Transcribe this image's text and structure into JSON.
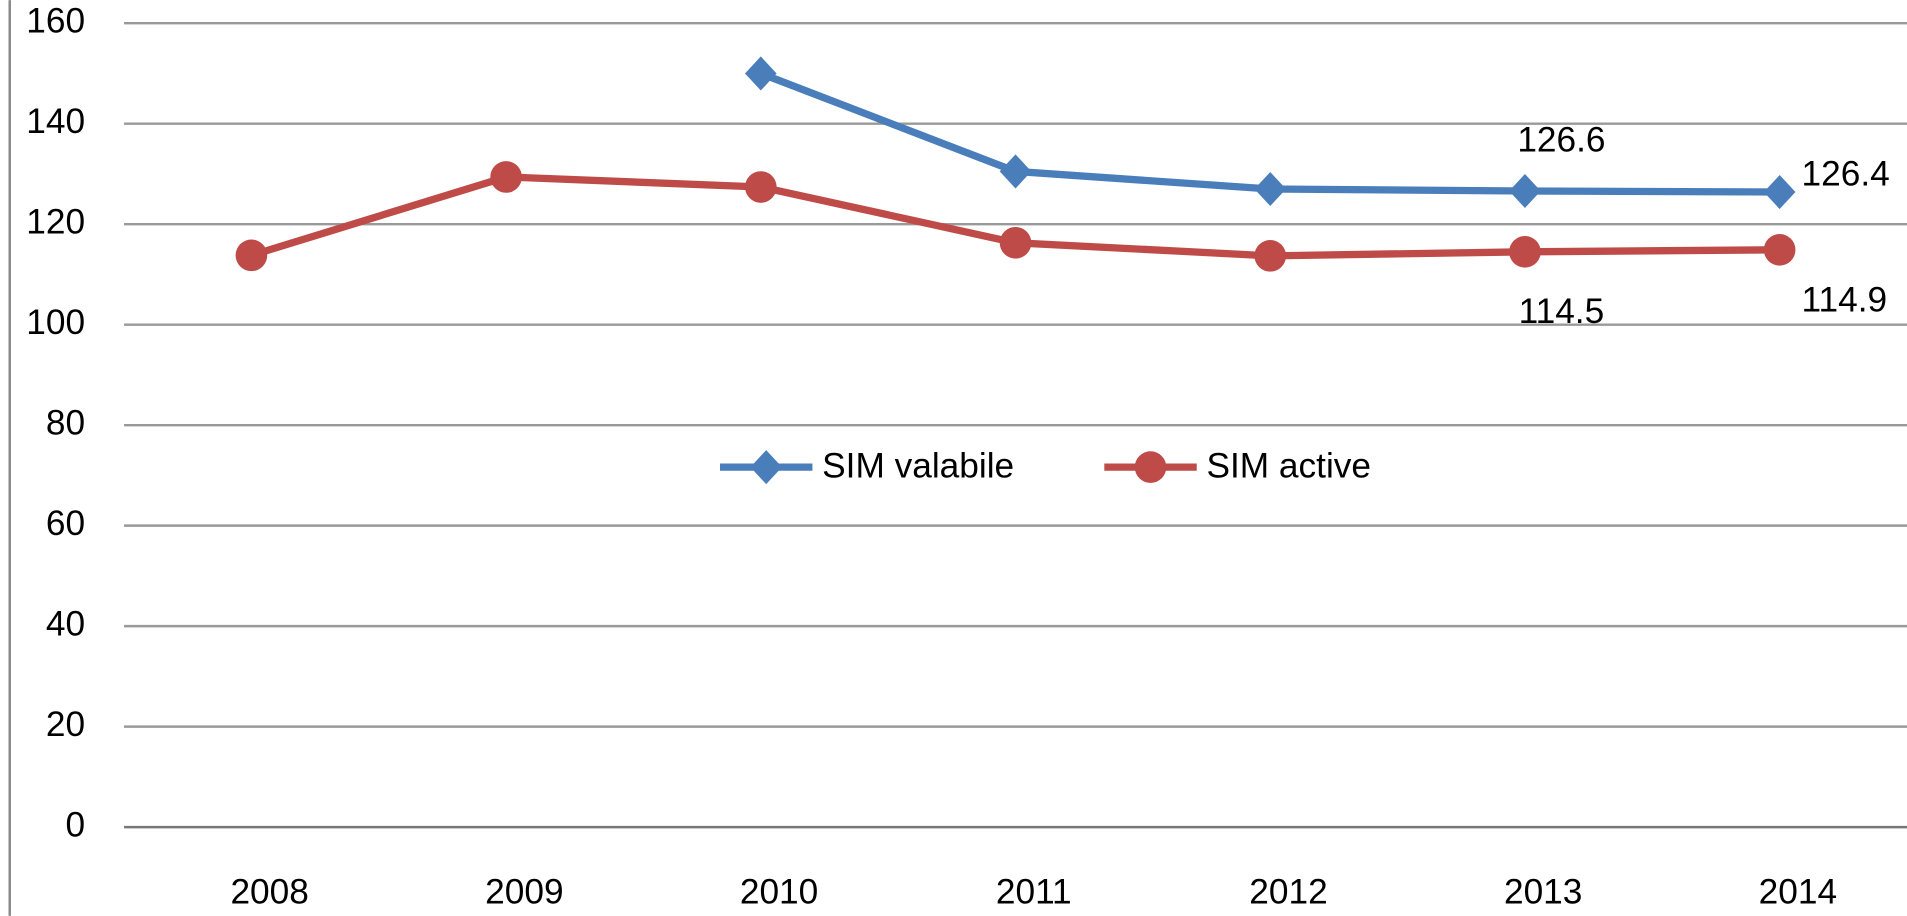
{
  "chart_data": {
    "type": "line",
    "categories": [
      "2008",
      "2009",
      "2010",
      "2011",
      "2012",
      "2013",
      "2014"
    ],
    "series": [
      {
        "name": "SIM valabile",
        "color": "#4a7ebb",
        "marker": "diamond",
        "values": [
          null,
          null,
          150,
          130.5,
          127,
          126.6,
          126.4
        ],
        "value_labels": [
          null,
          null,
          null,
          null,
          null,
          "126.6",
          "126.4"
        ]
      },
      {
        "name": "SIM active",
        "color": "#be4b48",
        "marker": "circle",
        "values": [
          113.8,
          129.4,
          127.4,
          116.3,
          113.7,
          114.5,
          114.9
        ],
        "value_labels": [
          null,
          null,
          null,
          null,
          null,
          "114.5",
          "114.9"
        ]
      }
    ],
    "ylim": [
      0,
      160
    ],
    "yticks": [
      0,
      20,
      40,
      60,
      80,
      100,
      120,
      140,
      160
    ],
    "grid": true,
    "legend": "center"
  }
}
